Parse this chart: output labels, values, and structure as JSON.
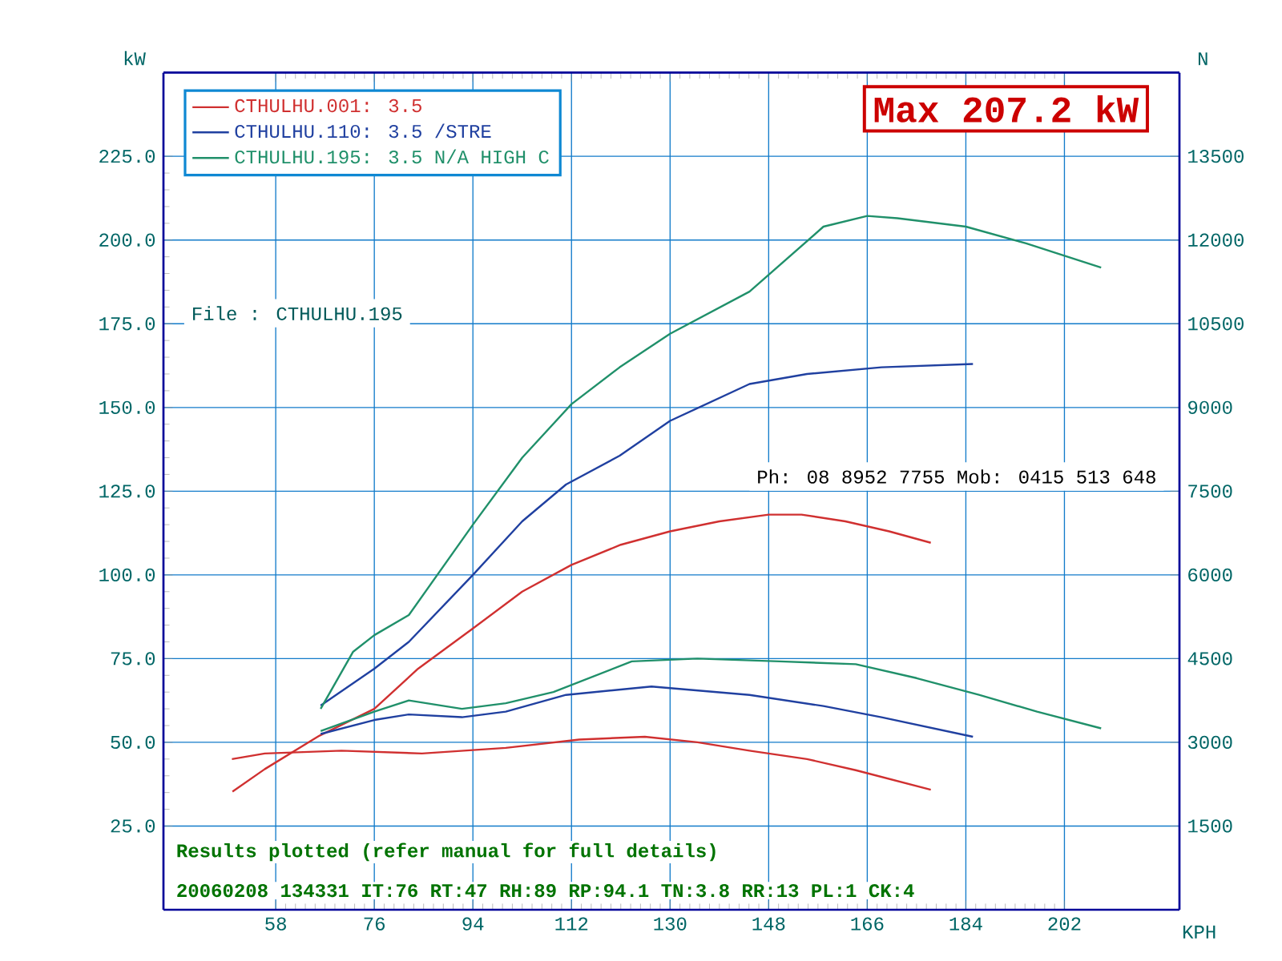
{
  "chart_data": {
    "type": "line",
    "title": "Max 207.2 kW",
    "xlabel": "KPH",
    "ylabel": "kW",
    "y2label": "N",
    "xlim": [
      37.5,
      223
    ],
    "xticks": [
      58,
      76,
      94,
      112,
      130,
      148,
      166,
      184,
      202
    ],
    "ylim": [
      0,
      250
    ],
    "yticks": [
      {
        "value": 25,
        "label": "25.0"
      },
      {
        "value": 50,
        "label": "50.0"
      },
      {
        "value": 75,
        "label": "75.0"
      },
      {
        "value": 100,
        "label": "100.0"
      },
      {
        "value": 125,
        "label": "125.0"
      },
      {
        "value": 150,
        "label": "150.0"
      },
      {
        "value": 175,
        "label": "175.0"
      },
      {
        "value": 200,
        "label": "200.0"
      },
      {
        "value": 225,
        "label": "225.0"
      }
    ],
    "y2lim": [
      0,
      15000
    ],
    "y2ticks": [
      1500,
      3000,
      4500,
      6000,
      7500,
      9000,
      10500,
      12000,
      13500
    ],
    "grid": true,
    "legend": "top left",
    "marker": "none",
    "line_style": "solid",
    "series": [
      {
        "name": "CTHULHU.001: 3.5",
        "color": "#d03030",
        "x": [
          50.1,
          56,
          66,
          76,
          84,
          94,
          103,
          112,
          121,
          130,
          139,
          148,
          154,
          162,
          170,
          177.6
        ],
        "values": [
          35.3,
          42,
          52,
          60,
          72,
          84,
          95,
          103,
          109,
          113,
          116,
          118,
          118,
          116,
          113,
          109.6
        ]
      },
      {
        "name": "CTHULHU.110: 3.5 /STRE",
        "color": "#2040a0",
        "x": [
          66.2,
          76,
          82.3,
          94,
          103,
          111,
          120.8,
          130,
          144.5,
          155,
          168.6,
          185.3
        ],
        "values": [
          61,
          72,
          80,
          100,
          116,
          127,
          135.6,
          146,
          157,
          160,
          162,
          163
        ]
      },
      {
        "name": "CTHULHU.195: 3.5 N/A HIGH C",
        "color": "#20906a",
        "x": [
          66.2,
          72.1,
          76,
          82.3,
          94,
          103,
          112,
          120.8,
          130,
          144.5,
          158,
          166,
          171.5,
          184,
          195,
          208.7
        ],
        "values": [
          60,
          77,
          82,
          88,
          115,
          135,
          151,
          162,
          172,
          184.6,
          204,
          207.2,
          206.5,
          204,
          199,
          191.8
        ]
      },
      {
        "color": "#d03030",
        "axis": "y2",
        "x": [
          50,
          56,
          70,
          84.7,
          100,
          113.4,
          125.4,
          135,
          144.5,
          155,
          163.9,
          177.6
        ],
        "values": [
          2700,
          2800,
          2850,
          2800,
          2900,
          3050,
          3100,
          3000,
          2850,
          2700,
          2500,
          2150
        ]
      },
      {
        "color": "#2040a0",
        "axis": "y2",
        "x": [
          66.2,
          76,
          82.3,
          92,
          100,
          111,
          126.6,
          144.5,
          158,
          168.6,
          185.3
        ],
        "values": [
          3150,
          3400,
          3500,
          3450,
          3550,
          3850,
          4000,
          3850,
          3650,
          3450,
          3100
        ]
      },
      {
        "color": "#20906a",
        "axis": "y2",
        "x": [
          66.2,
          76,
          82.3,
          92,
          100,
          108.7,
          123,
          135,
          150,
          163.9,
          175,
          186.4,
          197,
          208.7
        ],
        "values": [
          3200,
          3550,
          3750,
          3600,
          3700,
          3900,
          4450,
          4500,
          4450,
          4400,
          4150,
          3850,
          3550,
          3250
        ]
      }
    ],
    "annotations": [
      "File : CTHULHU.195",
      "Ph: 08 8952 7755 Mob: 0415 513 648",
      "Results plotted (refer manual for full details)",
      "20060208 134331 IT:76 RT:47 RH:89 RP:94.1 TN:3.8 RR:13 PL:1 CK:4"
    ]
  }
}
